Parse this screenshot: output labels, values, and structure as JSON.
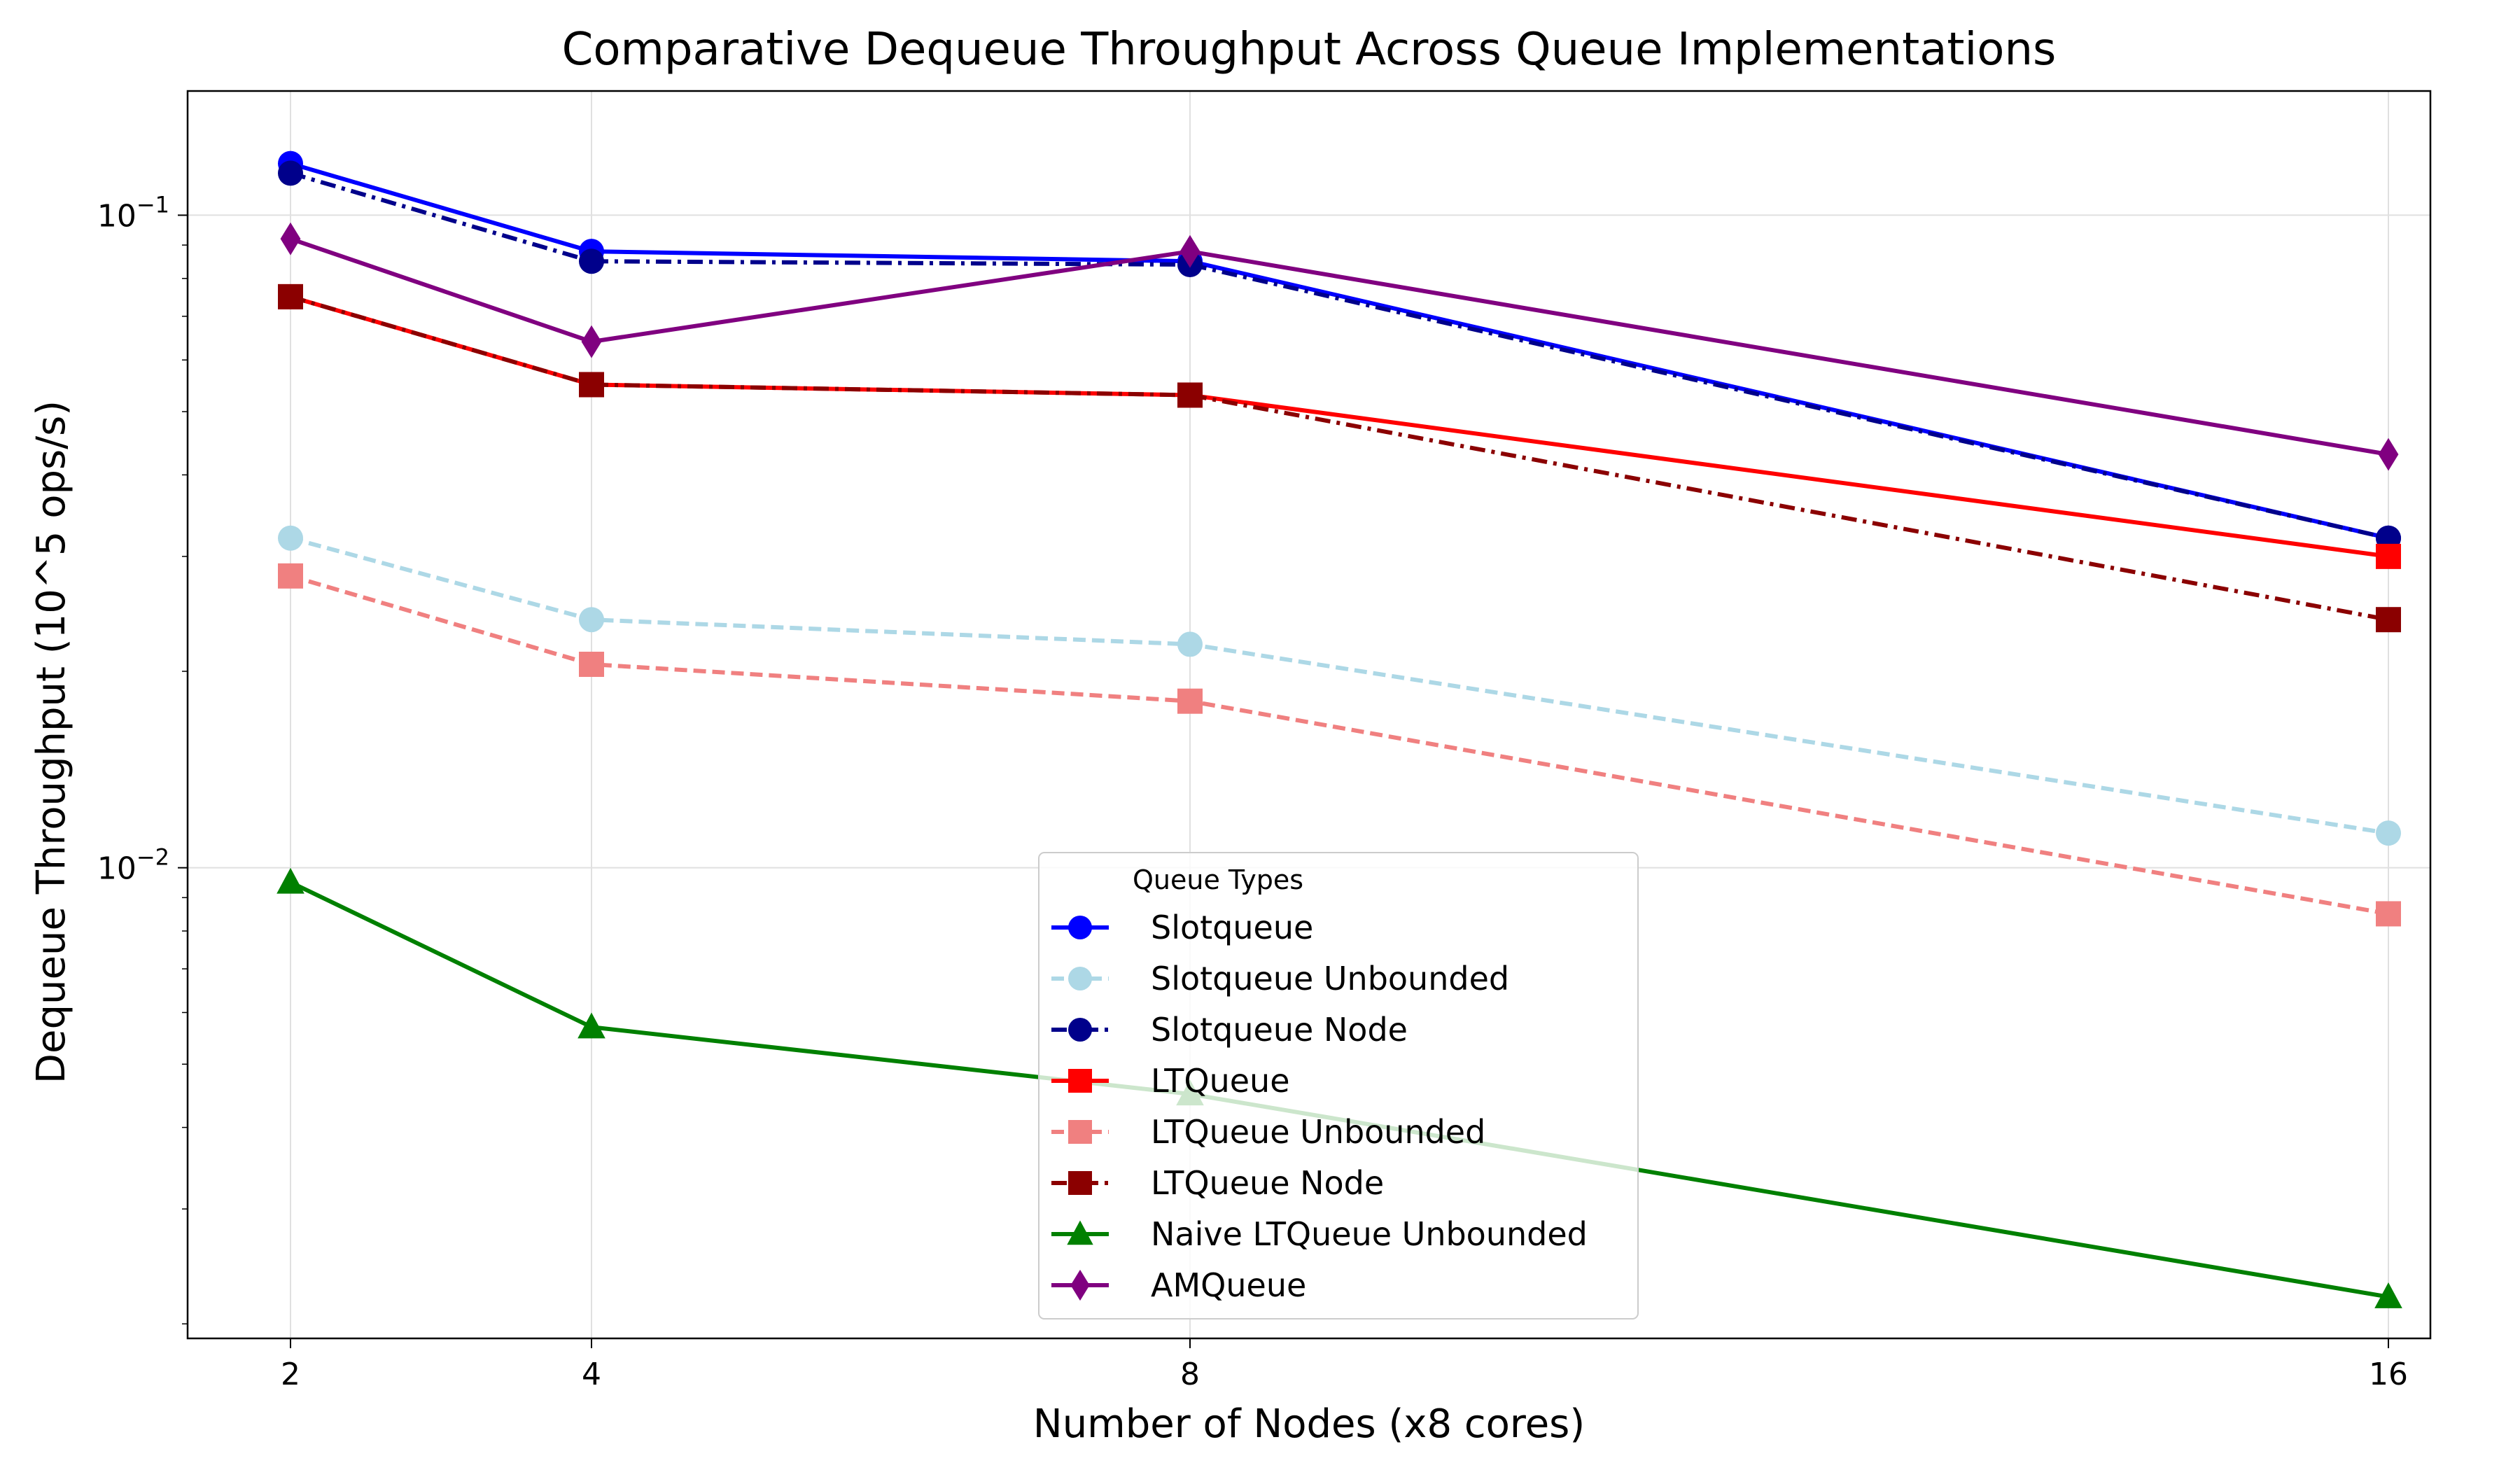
{
  "chart_data": {
    "type": "line",
    "title": "Comparative Dequeue Throughput Across Queue Implementations",
    "xlabel": "Number of Nodes (x8 cores)",
    "ylabel": "Dequeue Throughput (10^5 ops/s)",
    "x": [
      2,
      4,
      8,
      16
    ],
    "x_tick_labels": [
      "2",
      "4",
      "8",
      "16"
    ],
    "y_scale": "log",
    "ylim": [
      0.0019,
      0.155
    ],
    "y_major_ticks": [
      {
        "value": 0.01,
        "base": "10",
        "exp": "−2"
      },
      {
        "value": 0.1,
        "base": "10",
        "exp": "−1"
      }
    ],
    "grid": true,
    "legend": {
      "title": "Queue Types",
      "placement": "lower-center"
    },
    "series": [
      {
        "name": "Slotqueue",
        "values": [
          0.12,
          0.088,
          0.085,
          0.032
        ],
        "color": "#0000ff",
        "dash": "solid",
        "marker": "circle"
      },
      {
        "name": "Slotqueue Unbounded",
        "values": [
          0.032,
          0.024,
          0.022,
          0.0113
        ],
        "color": "#add8e6",
        "dash": "dashed",
        "marker": "circle"
      },
      {
        "name": "Slotqueue Node",
        "values": [
          0.116,
          0.085,
          0.084,
          0.032
        ],
        "color": "#00008b",
        "dash": "dashdot",
        "marker": "circle"
      },
      {
        "name": "LTQueue",
        "values": [
          0.075,
          0.055,
          0.053,
          0.03
        ],
        "color": "#ff0000",
        "dash": "solid",
        "marker": "square"
      },
      {
        "name": "LTQueue Unbounded",
        "values": [
          0.028,
          0.0205,
          0.018,
          0.0085
        ],
        "color": "#f08080",
        "dash": "dashed",
        "marker": "square"
      },
      {
        "name": "LTQueue Node",
        "values": [
          0.075,
          0.055,
          0.053,
          0.024
        ],
        "color": "#8b0000",
        "dash": "dashdot",
        "marker": "square"
      },
      {
        "name": "Naive LTQueue Unbounded",
        "values": [
          0.0095,
          0.0057,
          0.0045,
          0.0022
        ],
        "color": "#008000",
        "dash": "solid",
        "marker": "triangle"
      },
      {
        "name": "AMQueue",
        "values": [
          0.092,
          0.064,
          0.088,
          0.043
        ],
        "color": "#800080",
        "dash": "solid",
        "marker": "diamond"
      }
    ]
  }
}
